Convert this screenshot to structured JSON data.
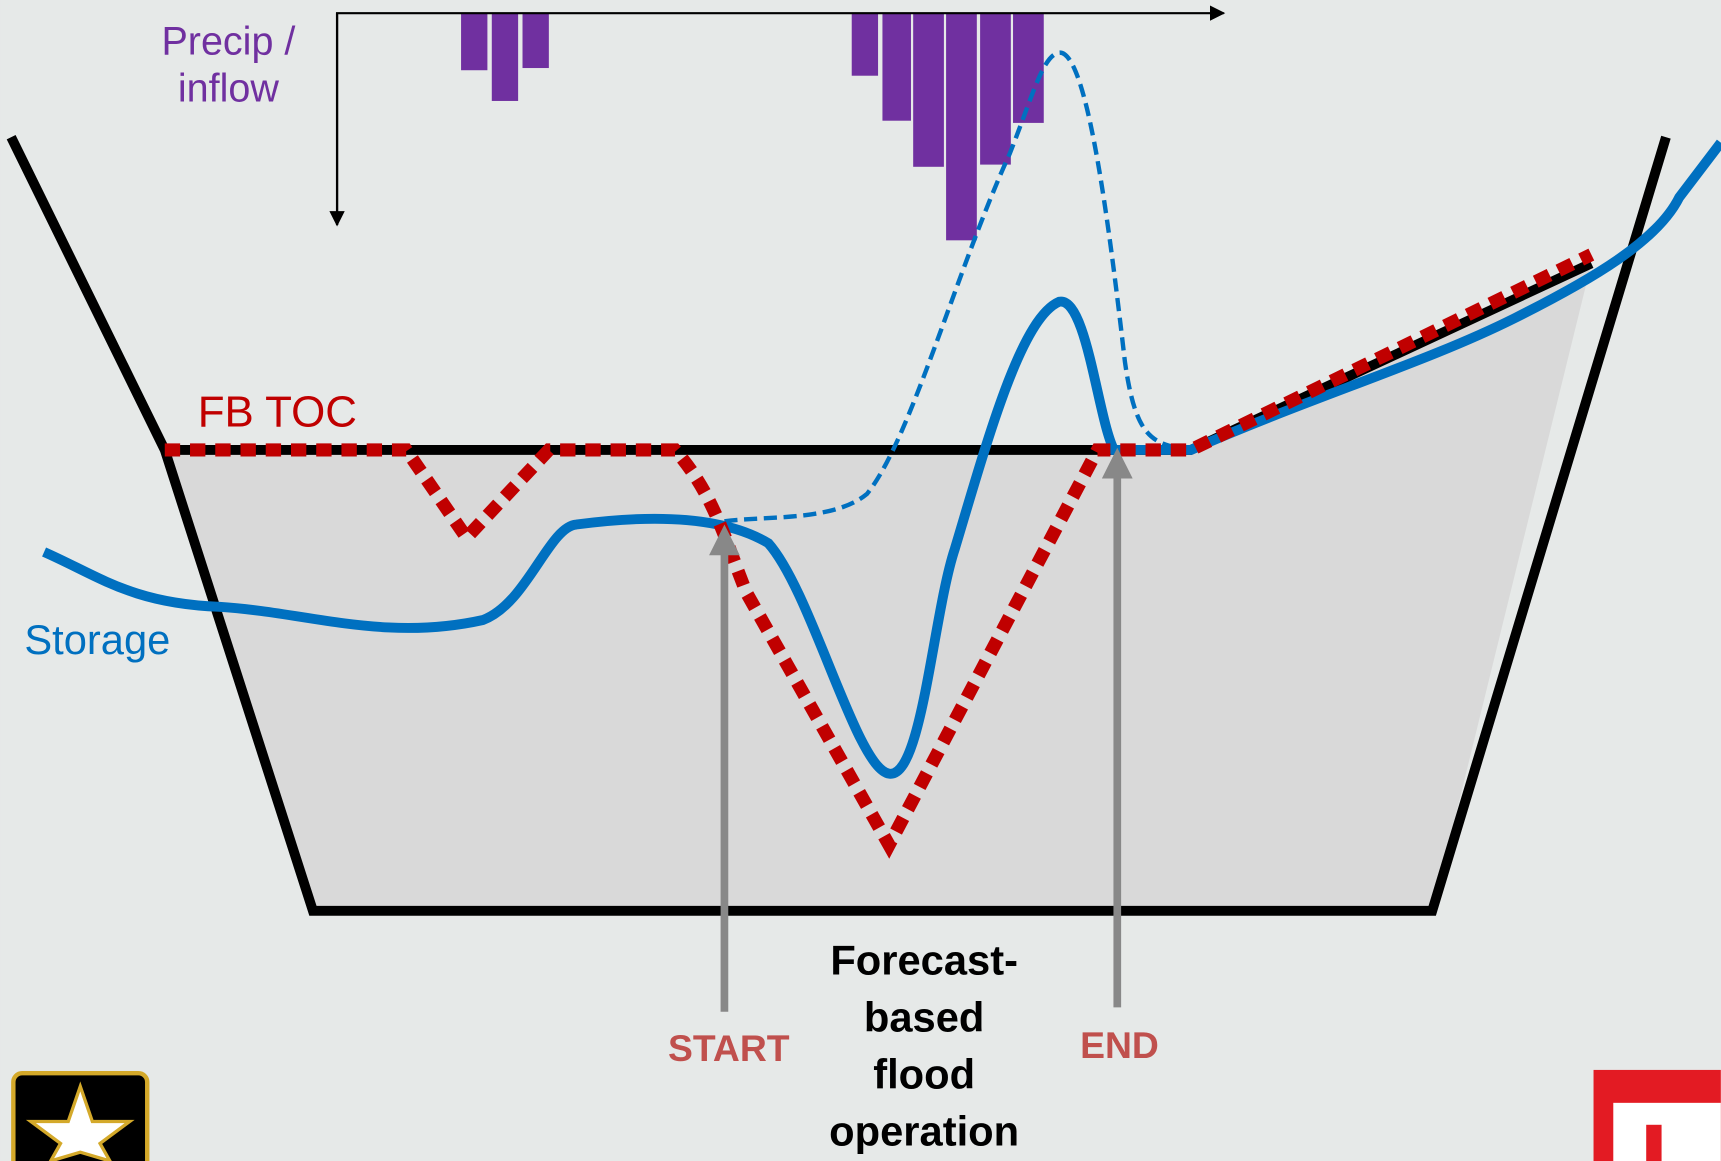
{
  "labels": {
    "precip": [
      "Precip /",
      "inflow"
    ],
    "fb_toc": "FB TOC",
    "storage": "Storage",
    "start": "START",
    "end": "END",
    "operation": [
      "Forecast-",
      "based",
      "flood",
      "operation"
    ]
  }
}
